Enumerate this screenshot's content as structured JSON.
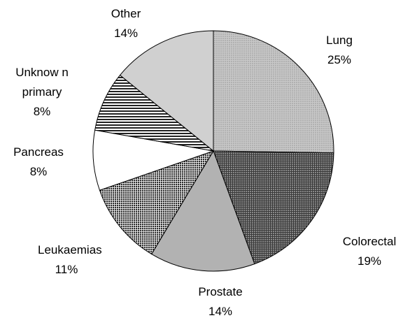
{
  "chart_data": {
    "type": "pie",
    "categories": [
      "Lung",
      "Colorectal",
      "Prostate",
      "Leukaemias",
      "Pancreas",
      "Unknow n primary",
      "Other"
    ],
    "values": [
      25,
      19,
      14,
      11,
      8,
      8,
      14
    ],
    "value_labels": [
      "25%",
      "19%",
      "14%",
      "11%",
      "8%",
      "8%",
      "14%"
    ],
    "colors": [
      "#c8c8c8",
      "#3a3a3a",
      "#b2b2b2",
      "#2e2e2e",
      "#ffffff",
      "#222222",
      "#d0d0d0"
    ]
  }
}
